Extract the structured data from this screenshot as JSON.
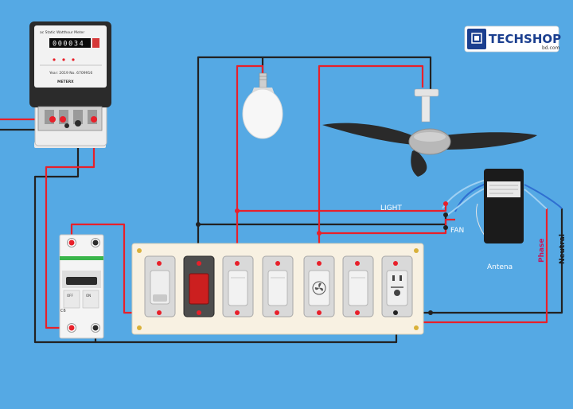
{
  "brand": {
    "name": "TECHSHOP",
    "domain": "bd.com"
  },
  "meter": {
    "header": "ac Static Watthour Meter",
    "reading": "000034",
    "brand": "METERX",
    "spec_line": "Year: 2019   No. 6709916"
  },
  "labels": {
    "light": "LIGHT",
    "fan": "FAN",
    "antenna": "Antena",
    "phase": "Phase",
    "neutral": "Neutral"
  },
  "breaker": {
    "label_left": "C6",
    "label_right": "ON",
    "off_text": "OFF"
  },
  "colors": {
    "background": "#55a9e4",
    "phase_wire": "#e8202a",
    "neutral_wire": "#222222",
    "board": "#f8f1e2",
    "remote_wire_blue": "#2f6fd1",
    "remote_wire_light": "#9fd0f2"
  },
  "icons": {
    "fan_regulator": "fan-icon",
    "socket": "universal-socket-icon"
  }
}
